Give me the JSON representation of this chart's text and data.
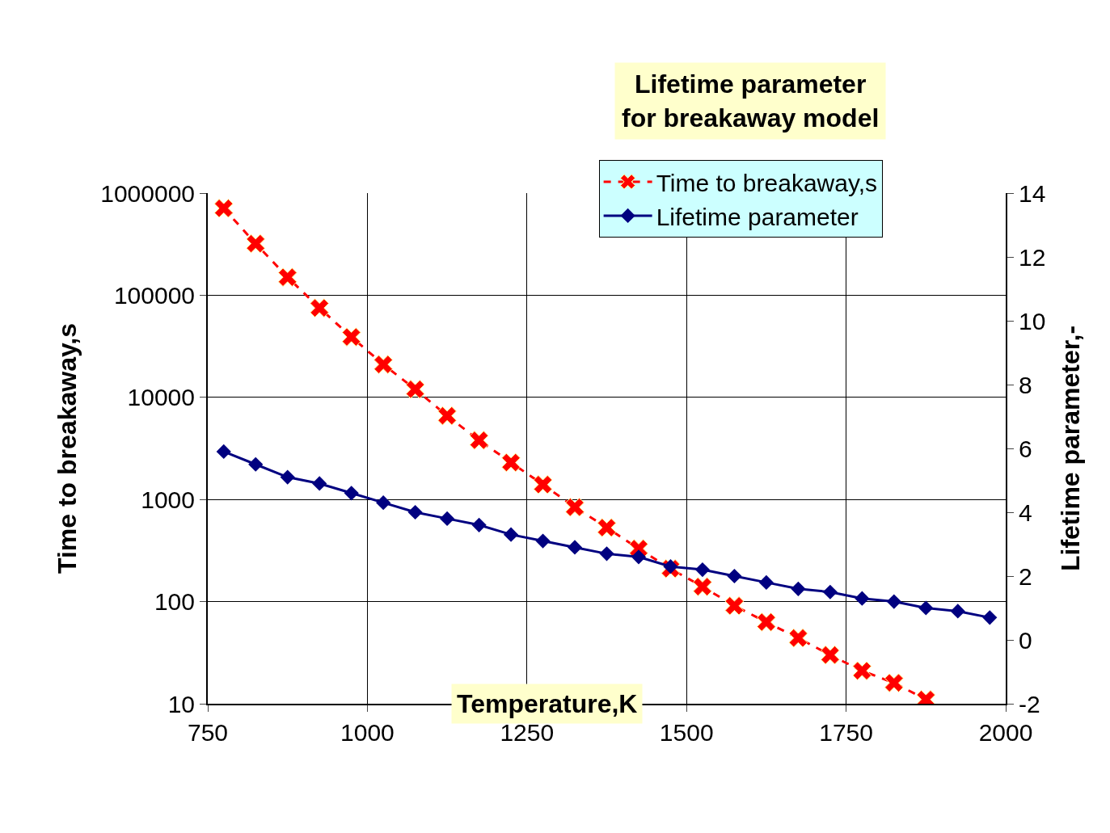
{
  "chart_data": {
    "type": "line",
    "title": "Lifetime parameter for breakaway model",
    "xlabel": "Temperature,K",
    "ylabel": "Time to breakaway,s",
    "y2label": "Lifetime parameter,-",
    "x": [
      775,
      825,
      875,
      925,
      975,
      1025,
      1075,
      1125,
      1175,
      1225,
      1275,
      1325,
      1375,
      1425,
      1475,
      1525,
      1575,
      1625,
      1675,
      1725,
      1775,
      1825,
      1875,
      1925,
      1975
    ],
    "series": [
      {
        "name": "Time to breakaway,s",
        "color": "#ff0000",
        "marker": "cross",
        "line_style": "dashed",
        "x": [
          775,
          825,
          875,
          925,
          975,
          1025,
          1075,
          1125,
          1175,
          1225,
          1275,
          1325,
          1375,
          1425,
          1475,
          1525,
          1575,
          1625,
          1675,
          1725,
          1775,
          1825,
          1875
        ],
        "values": [
          710000,
          320000,
          150000,
          75000,
          39000,
          21000,
          12000,
          6600,
          3800,
          2300,
          1400,
          840,
          530,
          330,
          210,
          140,
          91,
          63,
          44,
          30,
          21,
          16,
          11
        ]
      },
      {
        "name": "Lifetime parameter",
        "color": "#000080",
        "marker": "diamond",
        "line_style": "solid",
        "axis": "y2",
        "values": [
          5.9,
          5.5,
          5.1,
          4.9,
          4.6,
          4.3,
          4.0,
          3.8,
          3.6,
          3.3,
          3.1,
          2.9,
          2.7,
          2.6,
          2.3,
          2.2,
          2.0,
          1.8,
          1.6,
          1.5,
          1.3,
          1.2,
          1.0,
          0.9,
          0.7
        ]
      }
    ],
    "xlim": [
      750,
      2000
    ],
    "xticks": [
      750,
      1000,
      1250,
      1500,
      1750,
      2000
    ],
    "ylim": [
      10,
      1000000
    ],
    "yticks": [
      10,
      100,
      1000,
      10000,
      100000,
      1000000
    ],
    "y2lim": [
      -2,
      14
    ],
    "y2ticks": [
      -2,
      0,
      2,
      4,
      6,
      8,
      10,
      12,
      14
    ],
    "log": "y",
    "grid": true,
    "legend": "top right"
  }
}
